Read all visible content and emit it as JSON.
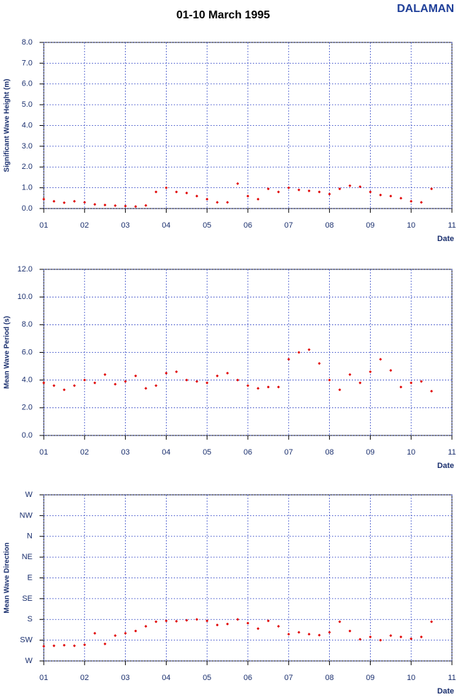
{
  "header": {
    "title": "01-10 March 1995",
    "station": "DALAMAN"
  },
  "chart_data": [
    {
      "type": "scatter",
      "ylabel": "Significant Wave Height (m)",
      "xlabel": "Date",
      "color": "#e00000",
      "grid": true,
      "x": [
        1,
        1.25,
        1.5,
        1.75,
        2,
        2.25,
        2.5,
        2.75,
        3,
        3.25,
        3.5,
        3.75,
        4,
        4.25,
        4.5,
        4.75,
        5,
        5.25,
        5.5,
        5.75,
        6,
        6.25,
        6.5,
        6.75,
        7,
        7.25,
        7.5,
        7.75,
        8,
        8.25,
        8.5,
        8.75,
        9,
        9.25,
        9.5,
        9.75,
        10,
        10.25,
        10.5
      ],
      "values": [
        0.45,
        0.35,
        0.28,
        0.35,
        0.3,
        0.2,
        0.17,
        0.14,
        0.12,
        0.1,
        0.15,
        0.8,
        1.0,
        0.8,
        0.75,
        0.6,
        0.45,
        0.3,
        0.3,
        1.2,
        0.6,
        0.45,
        0.95,
        0.8,
        1.0,
        0.9,
        0.85,
        0.8,
        0.7,
        0.95,
        1.1,
        1.05,
        0.8,
        0.65,
        0.6,
        0.5,
        0.35,
        0.3,
        0.95
      ],
      "xlim": [
        1,
        11
      ],
      "xticks": [
        {
          "value": 1,
          "label": "01"
        },
        {
          "value": 2,
          "label": "02"
        },
        {
          "value": 3,
          "label": "03"
        },
        {
          "value": 4,
          "label": "04"
        },
        {
          "value": 5,
          "label": "05"
        },
        {
          "value": 6,
          "label": "06"
        },
        {
          "value": 7,
          "label": "07"
        },
        {
          "value": 8,
          "label": "08"
        },
        {
          "value": 9,
          "label": "09"
        },
        {
          "value": 10,
          "label": "10"
        },
        {
          "value": 11,
          "label": "11"
        }
      ],
      "ylim": [
        0,
        8
      ],
      "yticks": [
        {
          "value": 0,
          "label": "0.0"
        },
        {
          "value": 1,
          "label": "1.0"
        },
        {
          "value": 2,
          "label": "2.0"
        },
        {
          "value": 3,
          "label": "3.0"
        },
        {
          "value": 4,
          "label": "4.0"
        },
        {
          "value": 5,
          "label": "5.0"
        },
        {
          "value": 6,
          "label": "6.0"
        },
        {
          "value": 7,
          "label": "7.0"
        },
        {
          "value": 8,
          "label": "8.0"
        }
      ]
    },
    {
      "type": "scatter",
      "ylabel": "Mean Wave Period (s)",
      "xlabel": "Date",
      "color": "#e00000",
      "grid": true,
      "x": [
        1,
        1.25,
        1.5,
        1.75,
        2,
        2.25,
        2.5,
        2.75,
        3,
        3.25,
        3.5,
        3.75,
        4,
        4.25,
        4.5,
        4.75,
        5,
        5.25,
        5.5,
        5.75,
        6,
        6.25,
        6.5,
        6.75,
        7,
        7.25,
        7.5,
        7.75,
        8,
        8.25,
        8.5,
        8.75,
        9,
        9.25,
        9.5,
        9.75,
        10,
        10.25,
        10.5
      ],
      "values": [
        3.8,
        3.6,
        3.3,
        3.6,
        4.0,
        3.8,
        4.4,
        3.7,
        3.9,
        4.3,
        3.4,
        3.6,
        4.5,
        4.6,
        4.0,
        3.9,
        3.8,
        4.3,
        4.5,
        4.0,
        3.6,
        3.4,
        3.5,
        3.5,
        5.5,
        6.0,
        6.2,
        5.2,
        4.0,
        3.3,
        4.4,
        3.8,
        4.6,
        5.5,
        4.7,
        3.5,
        3.8,
        3.9,
        3.2
      ],
      "xlim": [
        1,
        11
      ],
      "xticks": [
        {
          "value": 1,
          "label": "01"
        },
        {
          "value": 2,
          "label": "02"
        },
        {
          "value": 3,
          "label": "03"
        },
        {
          "value": 4,
          "label": "04"
        },
        {
          "value": 5,
          "label": "05"
        },
        {
          "value": 6,
          "label": "06"
        },
        {
          "value": 7,
          "label": "07"
        },
        {
          "value": 8,
          "label": "08"
        },
        {
          "value": 9,
          "label": "09"
        },
        {
          "value": 10,
          "label": "10"
        },
        {
          "value": 11,
          "label": "11"
        }
      ],
      "ylim": [
        0,
        12
      ],
      "yticks": [
        {
          "value": 0,
          "label": "0.0"
        },
        {
          "value": 2,
          "label": "2.0"
        },
        {
          "value": 4,
          "label": "4.0"
        },
        {
          "value": 6,
          "label": "6.0"
        },
        {
          "value": 8,
          "label": "8.0"
        },
        {
          "value": 10,
          "label": "10.0"
        },
        {
          "value": 12,
          "label": "12.0"
        }
      ]
    },
    {
      "type": "scatter",
      "ylabel": "Mean Wave Direction",
      "xlabel": "Date",
      "color": "#e00000",
      "grid": true,
      "x": [
        1,
        1.25,
        1.5,
        1.75,
        2,
        2.25,
        2.5,
        2.75,
        3,
        3.25,
        3.5,
        3.75,
        4,
        4.25,
        4.5,
        4.75,
        5,
        5.25,
        5.5,
        5.75,
        6,
        6.25,
        6.5,
        6.75,
        7,
        7.25,
        7.5,
        7.75,
        8,
        8.25,
        8.5,
        8.75,
        9,
        9.25,
        9.5,
        9.75,
        10,
        10.25,
        10.5
      ],
      "values": [
        238,
        237,
        236,
        237,
        235,
        210,
        233,
        215,
        210,
        205,
        195,
        185,
        183,
        184,
        182,
        180,
        183,
        192,
        190,
        180,
        188,
        200,
        183,
        195,
        212,
        208,
        212,
        214,
        208,
        185,
        205,
        223,
        218,
        225,
        215,
        218,
        222,
        218,
        185
      ],
      "xlim": [
        1,
        11
      ],
      "xticks": [
        {
          "value": 1,
          "label": "01"
        },
        {
          "value": 2,
          "label": "02"
        },
        {
          "value": 3,
          "label": "03"
        },
        {
          "value": 4,
          "label": "04"
        },
        {
          "value": 5,
          "label": "05"
        },
        {
          "value": 6,
          "label": "06"
        },
        {
          "value": 7,
          "label": "07"
        },
        {
          "value": 8,
          "label": "08"
        },
        {
          "value": 9,
          "label": "09"
        },
        {
          "value": 10,
          "label": "10"
        },
        {
          "value": 11,
          "label": "11"
        }
      ],
      "ylim": [
        270,
        -90
      ],
      "yticks": [
        {
          "value": 270,
          "label": "W"
        },
        {
          "value": 225,
          "label": "SW"
        },
        {
          "value": 180,
          "label": "S"
        },
        {
          "value": 135,
          "label": "SE"
        },
        {
          "value": 90,
          "label": "E"
        },
        {
          "value": 45,
          "label": "NE"
        },
        {
          "value": 0,
          "label": "N"
        },
        {
          "value": -45,
          "label": "NW"
        },
        {
          "value": -90,
          "label": "W"
        }
      ]
    }
  ]
}
